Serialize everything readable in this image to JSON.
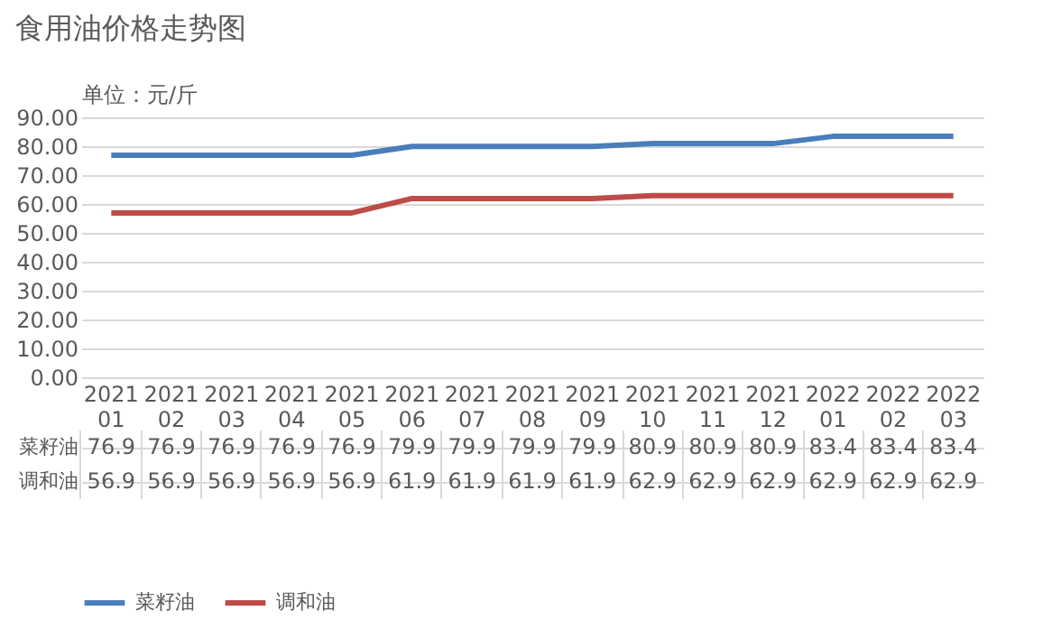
{
  "chart_data": {
    "type": "line",
    "title": "食用油价格走势图",
    "ylabel": "单位：元/斤",
    "categories": [
      "202101",
      "202102",
      "202103",
      "202104",
      "202105",
      "202106",
      "202107",
      "202108",
      "202109",
      "202110",
      "202111",
      "202112",
      "202201",
      "202202",
      "202203"
    ],
    "series": [
      {
        "name": "菜籽油",
        "color": "#4a7ebb",
        "values": [
          76.9,
          76.9,
          76.9,
          76.9,
          76.9,
          79.9,
          79.9,
          79.9,
          79.9,
          80.9,
          80.9,
          80.9,
          83.4,
          83.4,
          83.4
        ]
      },
      {
        "name": "调和油",
        "color": "#be4b48",
        "values": [
          56.9,
          56.9,
          56.9,
          56.9,
          56.9,
          61.9,
          61.9,
          61.9,
          61.9,
          62.9,
          62.9,
          62.9,
          62.9,
          62.9,
          62.9
        ]
      }
    ],
    "ylim": [
      0,
      90
    ],
    "yticks": [
      {
        "value": 0,
        "label": "0.00"
      },
      {
        "value": 10,
        "label": "10.00"
      },
      {
        "value": 20,
        "label": "20.00"
      },
      {
        "value": 30,
        "label": "30.00"
      },
      {
        "value": 40,
        "label": "40.00"
      },
      {
        "value": 50,
        "label": "50.00"
      },
      {
        "value": 60,
        "label": "60.00"
      },
      {
        "value": 70,
        "label": "70.00"
      },
      {
        "value": 80,
        "label": "80.00"
      },
      {
        "value": 90,
        "label": "90.00"
      }
    ],
    "grid": "y",
    "legend": "bottom",
    "data_labels": true,
    "line_style": "solid",
    "marker": "none"
  }
}
